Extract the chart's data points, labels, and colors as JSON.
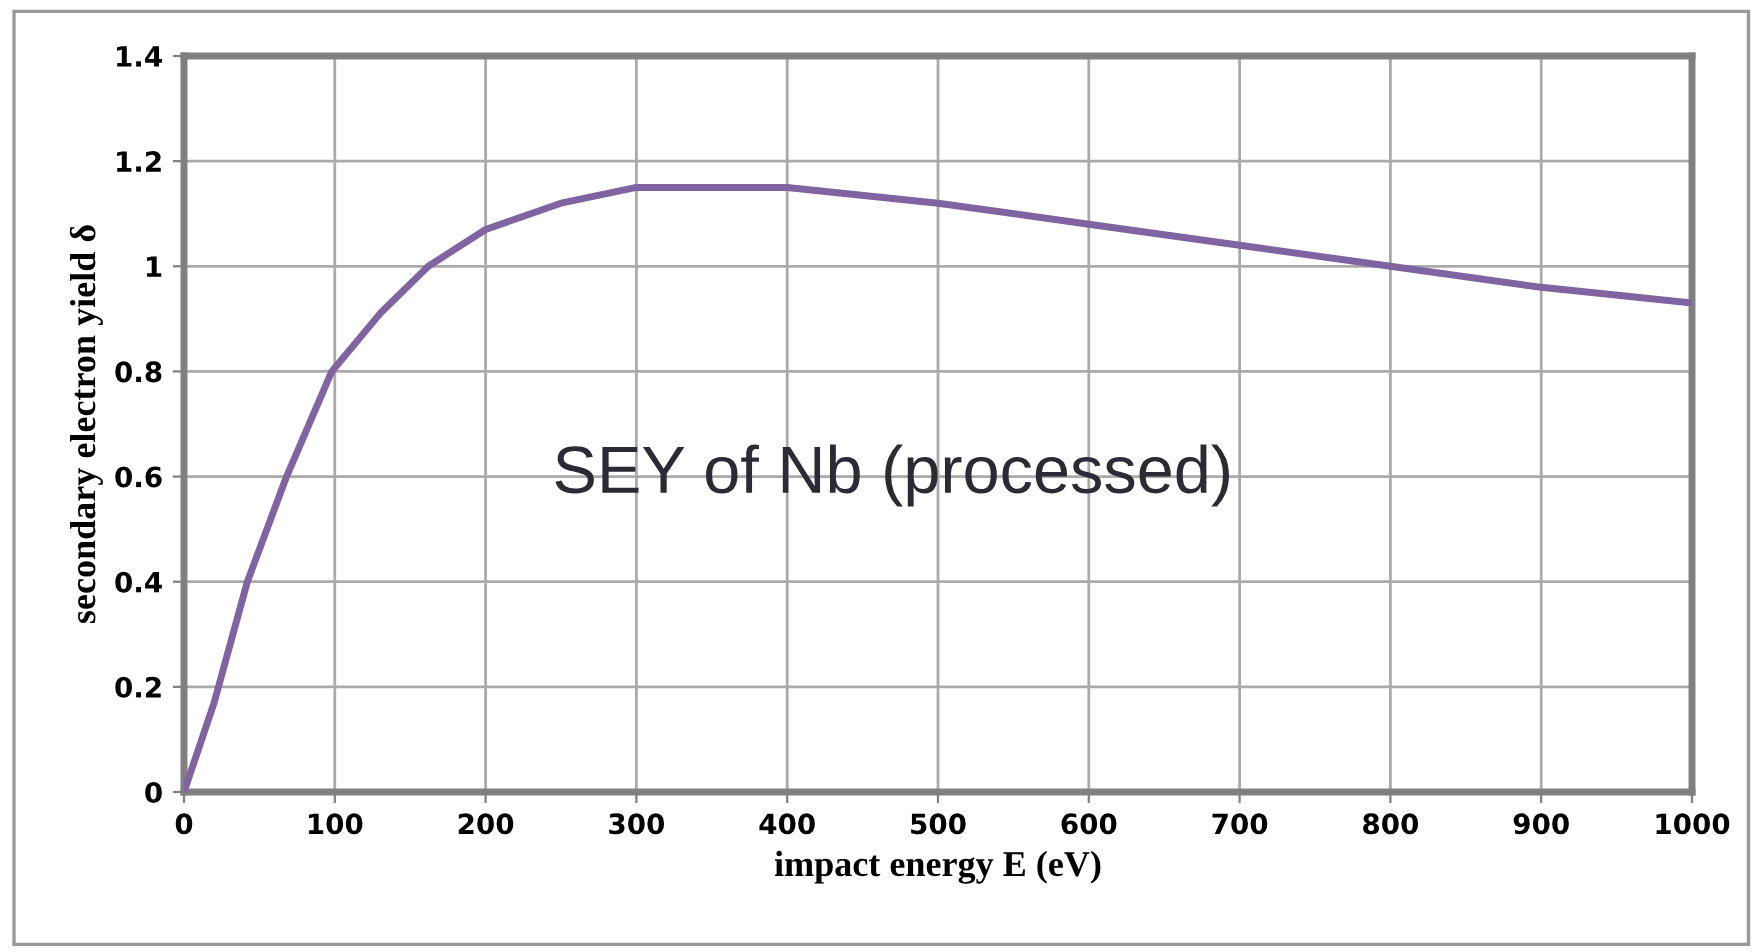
{
  "chart_data": {
    "type": "line",
    "xlabel": "impact energy E (eV)",
    "ylabel": "secondary electron yield δ",
    "annotations": [
      "SEY of Nb (processed)"
    ],
    "x": [
      0,
      20,
      42,
      68,
      98,
      130,
      162,
      200,
      250,
      300,
      350,
      400,
      500,
      600,
      700,
      800,
      900,
      1000
    ],
    "series": [
      {
        "color": "#8064a2",
        "values": [
          0,
          0.17,
          0.4,
          0.6,
          0.8,
          0.91,
          1.0,
          1.07,
          1.12,
          1.15,
          1.15,
          1.15,
          1.12,
          1.08,
          1.04,
          1.0,
          0.96,
          0.93
        ]
      }
    ],
    "xlim": [
      0,
      1000
    ],
    "xticks": [
      0,
      100,
      200,
      300,
      400,
      500,
      600,
      700,
      800,
      900,
      1000
    ],
    "ylim": [
      0,
      1.4
    ],
    "yticks": [
      0,
      0.2,
      0.4,
      0.6,
      0.8,
      1,
      1.2,
      1.4
    ],
    "grid": true,
    "marker": "none",
    "line_style": "solid"
  }
}
